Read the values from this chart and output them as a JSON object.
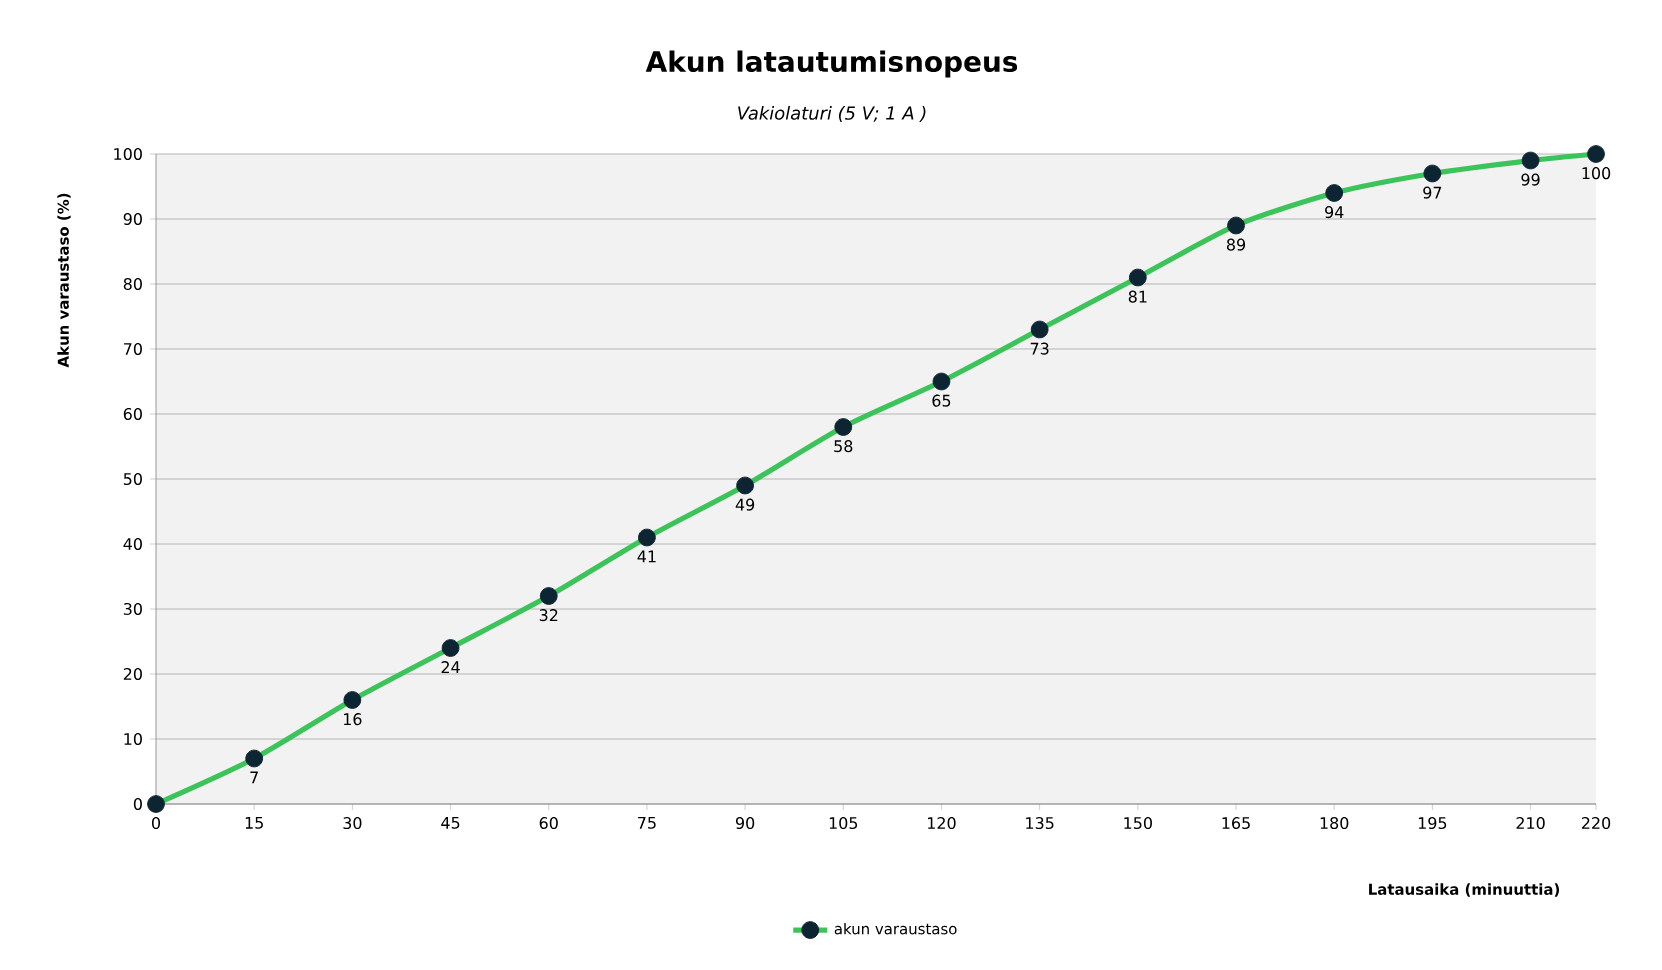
{
  "chart_data": {
    "type": "line",
    "title": "Akun latautumisnopeus",
    "subtitle": "Vakiolaturi (5 V; 1 A )",
    "xlabel": "Latausaika  (minuuttia)",
    "ylabel": "Akun varaustaso  (%)",
    "x": [
      0,
      15,
      30,
      45,
      60,
      75,
      90,
      105,
      120,
      135,
      150,
      165,
      180,
      195,
      210,
      220
    ],
    "series": [
      {
        "name": "akun varaustaso",
        "color": "#3cc35a",
        "values": [
          0,
          7,
          16,
          24,
          32,
          41,
          49,
          58,
          65,
          73,
          81,
          89,
          94,
          97,
          99,
          100
        ],
        "value_labels": [
          null,
          "7",
          "16",
          "24",
          "32",
          "41",
          "49",
          "58",
          "65",
          "73",
          "81",
          "89",
          "94",
          "97",
          "99",
          "100"
        ]
      }
    ],
    "xlim": [
      0,
      220
    ],
    "xticks": [
      0,
      15,
      30,
      45,
      60,
      75,
      90,
      105,
      120,
      135,
      150,
      165,
      180,
      195,
      210,
      220
    ],
    "ylim": [
      0,
      100
    ],
    "yticks": [
      0,
      10,
      20,
      30,
      40,
      50,
      60,
      70,
      80,
      90,
      100
    ],
    "grid": "y",
    "legend": "bottom",
    "marker": "circle"
  }
}
